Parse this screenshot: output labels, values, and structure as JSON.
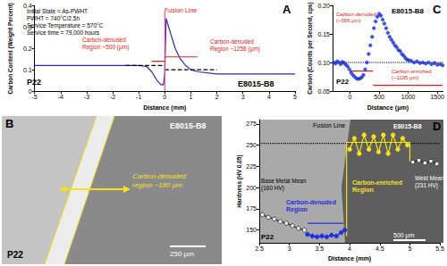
{
  "chart_data": [
    {
      "type": "line",
      "title": "A",
      "x_label": "Distance (mm)",
      "y_label": "Carbon Content (Weight Percent)",
      "xlim": [
        -5,
        5
      ],
      "xticks": [
        -5,
        -4,
        -3,
        -2,
        -1,
        0,
        1,
        2,
        3,
        4,
        5
      ],
      "ylim": [
        0,
        0.4
      ],
      "yticks": [
        0,
        0.1,
        0.2,
        0.3,
        0.4
      ],
      "grid": false,
      "annotations": [
        "Initial State = As-PWHT",
        "PWHT = 740°C/2.5h",
        "Service Temperature = 570°C",
        "Service time = 79,000 hours",
        "Fusion Line",
        "Carbon-denuded\nRegion ~500 (μm)",
        "Carbon-denuded\nRegion ~1258 (μm)",
        "P22",
        "E8015-B8"
      ],
      "series": [
        {
          "color": "#2b2ba8",
          "marker": "none",
          "line_style": "solid",
          "x": [
            -5,
            -4,
            -3,
            -2,
            -1,
            -0.7,
            -0.5,
            -0.3,
            -0.15,
            -0.05,
            0,
            0.05,
            0.2,
            0.4,
            0.6,
            0.8,
            1.0,
            1.3,
            2,
            3,
            4,
            5
          ],
          "values": [
            0.12,
            0.12,
            0.12,
            0.12,
            0.12,
            0.115,
            0.09,
            0.05,
            0.03,
            0.03,
            0.08,
            0.34,
            0.28,
            0.2,
            0.15,
            0.12,
            0.1,
            0.09,
            0.08,
            0.08,
            0.08,
            0.08
          ]
        },
        {
          "color": "#000000",
          "marker": "none",
          "line_style": "dashed",
          "x": [
            -1.5,
            0
          ],
          "values": [
            0.12,
            0.12
          ]
        },
        {
          "color": "#000000",
          "marker": "none",
          "line_style": "dashed",
          "x": [
            0,
            2
          ],
          "values": [
            0.1,
            0.1
          ]
        },
        {
          "color": "#e8508f",
          "marker": "none",
          "line_style": "solid",
          "x": [
            0,
            0
          ],
          "values": [
            0,
            0.37
          ]
        },
        {
          "color": "#e02020",
          "marker": "none",
          "line_style": "solid",
          "x": [
            -0.5,
            0
          ],
          "values": [
            0.14,
            0.14
          ]
        },
        {
          "color": "#e02020",
          "marker": "none",
          "line_style": "solid",
          "x": [
            0,
            1.258
          ],
          "values": [
            0.16,
            0.16
          ]
        }
      ]
    },
    {
      "type": "image",
      "title": "B",
      "annotations": [
        "E8015-B8",
        "Carbon-denuded\nregion ~180 μm",
        "P22",
        "250 μm"
      ]
    },
    {
      "type": "scatter",
      "title": "C",
      "x_label": "Distance (μm)",
      "y_label": "Carbon (Counts per Second, cps)",
      "xlim": [
        -300,
        1600
      ],
      "xticks": [
        0,
        500,
        1000,
        1500
      ],
      "ylim": [
        0.05,
        0.2
      ],
      "yticks": [
        0.05,
        {
          "value": 0.1,
          "label": "0.10"
        },
        0.15,
        {
          "value": 0.2,
          "label": "0.20"
        }
      ],
      "grid": false,
      "annotations": [
        "E8015-B8",
        "Carbon-denuded\n(~395 μm)",
        "Carbon-enriched\n(~1195 μm)",
        "P22"
      ],
      "series": [
        {
          "color": "#1a2fd6",
          "marker": "circle",
          "line_style": "none",
          "x": [
            -280,
            -250,
            -220,
            -190,
            -160,
            -130,
            -100,
            -70,
            -40,
            -10,
            20,
            50,
            80,
            110,
            140,
            170,
            200,
            230,
            260,
            290,
            320,
            350,
            380,
            410,
            440,
            470,
            500,
            530,
            560,
            590,
            620,
            650,
            680,
            710,
            740,
            770,
            800,
            830,
            860,
            890,
            920,
            950,
            980,
            1010,
            1050,
            1100,
            1150,
            1200,
            1250,
            1300,
            1350,
            1400,
            1450,
            1500,
            1550,
            1590
          ],
          "values": [
            0.1,
            0.098,
            0.102,
            0.1,
            0.097,
            0.101,
            0.099,
            0.096,
            0.093,
            0.088,
            0.082,
            0.078,
            0.075,
            0.072,
            0.071,
            0.072,
            0.074,
            0.078,
            0.088,
            0.1,
            0.115,
            0.13,
            0.145,
            0.16,
            0.172,
            0.18,
            0.185,
            0.182,
            0.175,
            0.168,
            0.16,
            0.152,
            0.145,
            0.14,
            0.135,
            0.13,
            0.127,
            0.122,
            0.12,
            0.115,
            0.112,
            0.108,
            0.105,
            0.104,
            0.103,
            0.1,
            0.102,
            0.099,
            0.1,
            0.098,
            0.1,
            0.097,
            0.099,
            0.096,
            0.097,
            0.095
          ]
        },
        {
          "type": "line",
          "color": "#000000",
          "marker": "none",
          "line_style": "dotted",
          "x": [
            -300,
            1600
          ],
          "values": [
            0.1,
            0.1
          ]
        },
        {
          "type": "line",
          "color": "#e02020",
          "marker": "none",
          "line_style": "solid",
          "x": [
            0,
            395
          ],
          "values": [
            0.085,
            0.085
          ]
        },
        {
          "type": "line",
          "color": "#e02020",
          "marker": "none",
          "line_style": "solid",
          "x": [
            395,
            1590
          ],
          "values": [
            0.06,
            0.06
          ]
        }
      ]
    },
    {
      "type": "line",
      "title": "D",
      "x_label": "Distance (mm)",
      "y_label": "Hardness (HV 0.05)",
      "xlim": [
        2.5,
        5.5
      ],
      "xticks": [
        2.5,
        3,
        3.5,
        4,
        4.5,
        5,
        5.5
      ],
      "ylim": [
        135,
        280
      ],
      "yticks": [
        150,
        175,
        200,
        225,
        250,
        275
      ],
      "grid": false,
      "annotations": [
        "Fusion Line",
        "E8015-B8",
        "Weld Mean\n(231 HV)",
        "Base Metal Mean\n(160 HV)",
        "Carbon-denuded\nRegion",
        "Carbon-enriched\nRegion",
        "P22",
        "500 μm"
      ],
      "series": [
        {
          "color": "#000000",
          "marker": "none",
          "line_style": "dotted",
          "x": [
            2.5,
            5.5
          ],
          "values": [
            252,
            252
          ]
        },
        {
          "color": "#f5e11e",
          "marker": "none",
          "line_style": "solid",
          "x": [
            3.95,
            3.95,
            5.0,
            5.0
          ],
          "values": [
            143,
            253,
            253,
            231
          ]
        },
        {
          "color": "#ffffff",
          "marker": "circle",
          "line_style": "solid",
          "x": [
            2.55,
            2.65,
            2.75,
            2.85,
            2.95,
            3.05,
            3.15,
            3.25
          ],
          "values": [
            168,
            165,
            163,
            160,
            158,
            155,
            152,
            150
          ]
        },
        {
          "color": "#1f2ee0",
          "marker": "circle",
          "line_style": "solid",
          "x": [
            3.3,
            3.38,
            3.46,
            3.54,
            3.62,
            3.7,
            3.78,
            3.86,
            3.92
          ],
          "values": [
            145,
            143,
            142,
            143,
            142,
            144,
            143,
            147,
            150
          ]
        },
        {
          "color": "#1f2ee0",
          "marker": "none",
          "line_style": "solid",
          "x": [
            3.3,
            3.9
          ],
          "values": [
            158,
            158
          ]
        },
        {
          "color": "#f5e11e",
          "marker": "circle",
          "line_style": "solid",
          "x": [
            4.0,
            4.08,
            4.16,
            4.24,
            4.32,
            4.4,
            4.48,
            4.56,
            4.64,
            4.72,
            4.8,
            4.88,
            4.96
          ],
          "values": [
            245,
            258,
            240,
            262,
            245,
            260,
            242,
            262,
            240,
            262,
            245,
            258,
            250
          ]
        },
        {
          "color": "#ffffff",
          "marker": "circle",
          "line_style": "solid",
          "x": [
            5.05,
            5.15,
            5.25,
            5.35,
            5.45
          ],
          "values": [
            230,
            232,
            229,
            231,
            228
          ]
        }
      ]
    }
  ]
}
